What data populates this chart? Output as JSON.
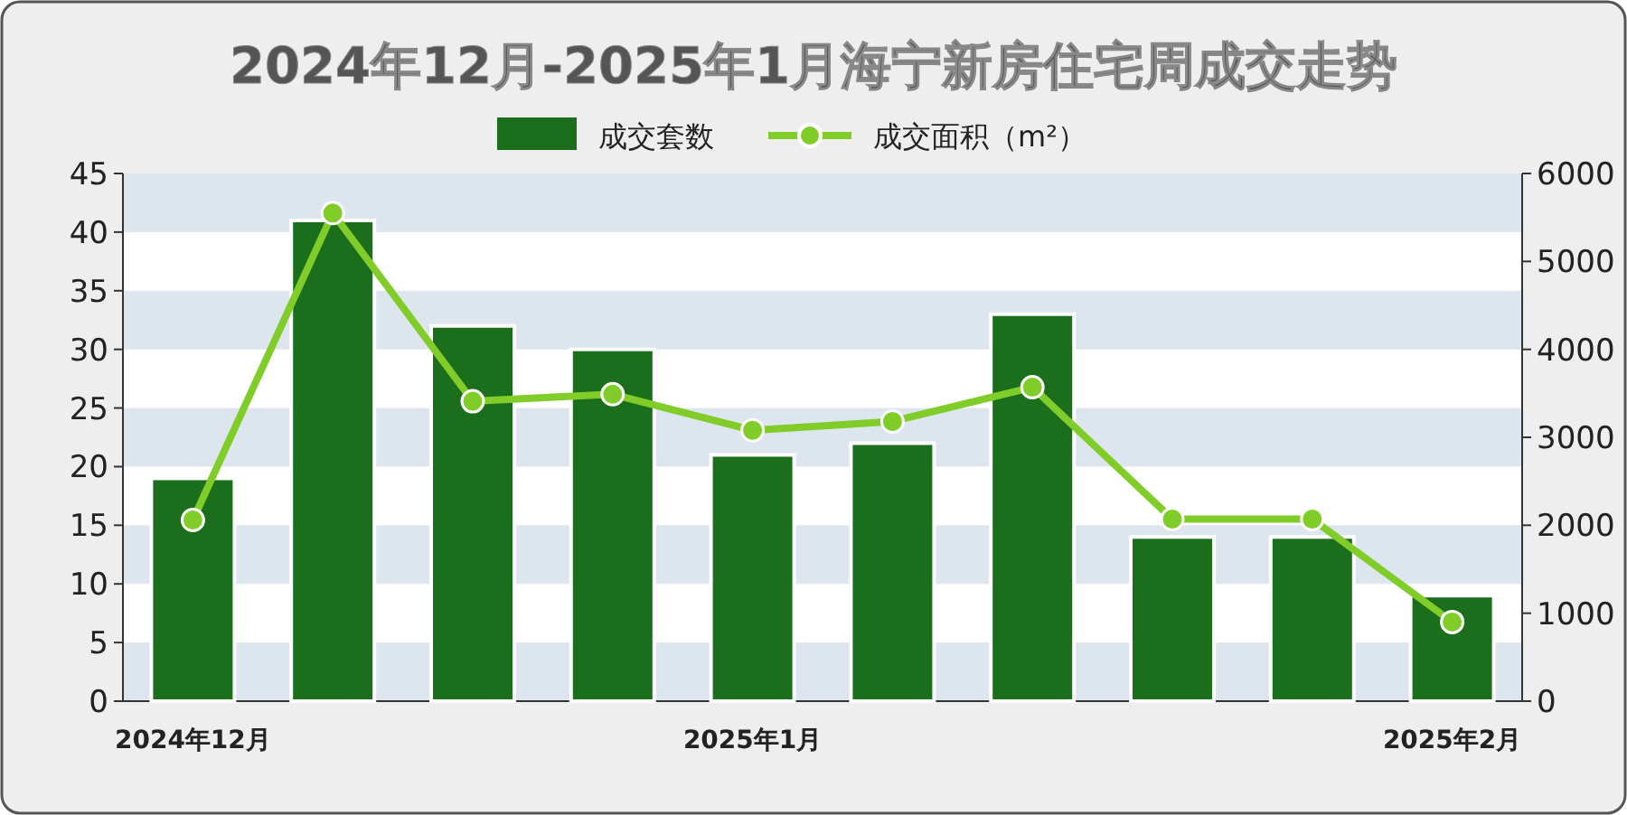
{
  "chart_data": {
    "type": "bar",
    "title": "2024年12月-2025年1月海宁新房住宅周成交走势",
    "categories": [
      "2024年12月",
      null,
      null,
      null,
      "2025年1月",
      null,
      null,
      null,
      null,
      "2025年2月"
    ],
    "series": [
      {
        "name": "成交套数",
        "color": "#1b6e1b",
        "values": [
          19,
          41,
          32,
          30,
          21,
          22,
          33,
          14,
          14,
          9
        ]
      },
      {
        "name": "成交面积（m²）",
        "type": "line",
        "axis": "y2",
        "color": "#80cc28",
        "values": [
          2060,
          5550,
          3410,
          3490,
          3080,
          3180,
          3570,
          2070,
          2070,
          900
        ]
      }
    ],
    "ylim": [
      0,
      45
    ],
    "yticks": [
      0,
      5,
      10,
      15,
      20,
      25,
      30,
      35,
      40,
      45
    ],
    "y2lim": [
      0,
      6000
    ],
    "y2ticks": [
      0,
      1000,
      2000,
      3000,
      4000,
      5000,
      6000
    ],
    "bands": [
      {
        "axis": "y",
        "from": 0,
        "to": 5,
        "color": "#dde5ee"
      },
      {
        "axis": "y",
        "from": 10,
        "to": 15,
        "color": "#dde5ee"
      },
      {
        "axis": "y",
        "from": 20,
        "to": 25,
        "color": "#dde5ee"
      },
      {
        "axis": "y",
        "from": 30,
        "to": 35,
        "color": "#dde5ee"
      },
      {
        "axis": "y",
        "from": 40,
        "to": 45,
        "color": "#dde5ee"
      }
    ],
    "legend": "top",
    "marker": "circle"
  }
}
